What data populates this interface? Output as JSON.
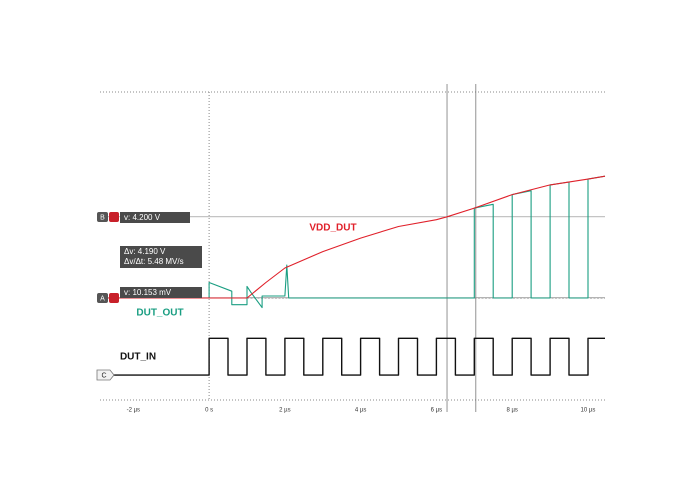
{
  "chart_data": {
    "type": "line",
    "xlim": [
      -2.88,
      10.45
    ],
    "ylim": [
      -5.28,
      10.66
    ],
    "y2lim": [
      -1.29,
      14.64
    ],
    "xticks": [
      {
        "value": -2,
        "label": "-2 µs"
      },
      {
        "value": 0,
        "label": "0 s"
      },
      {
        "value": 2,
        "label": "2 µs"
      },
      {
        "value": 4,
        "label": "4 µs"
      },
      {
        "value": 6,
        "label": "6 µs"
      },
      {
        "value": 8,
        "label": "8 µs"
      },
      {
        "value": 10,
        "label": "10 µs"
      }
    ],
    "origin_lines": true,
    "cursors": {
      "x": [
        6.28,
        7.04
      ],
      "y": [
        4.2,
        0.010153
      ]
    },
    "annotations": [
      "v: 4.200 V",
      "Δv: 4.190 V",
      "Δv/Δt: 5.48 MV/s",
      "v: 10.153 mV"
    ],
    "channel_tags": [
      "B",
      "A",
      "C"
    ],
    "series": [
      {
        "name": "VDD_DUT",
        "color": "#e0202a",
        "x": [
          -2.88,
          1.0,
          1.5,
          2,
          3,
          4,
          5,
          6,
          6.28,
          7,
          8,
          9,
          10,
          10.45
        ],
        "values": [
          0,
          0,
          0.8,
          1.55,
          2.4,
          3.1,
          3.7,
          4.05,
          4.2,
          4.65,
          5.35,
          5.85,
          6.15,
          6.3
        ]
      },
      {
        "name": "DUT_OUT",
        "color": "#1a9e82",
        "x": [
          -2.88,
          0,
          0,
          0.6,
          0.6,
          1.0,
          1.0,
          1.1,
          1.4,
          1.4,
          1.6,
          2.0,
          2.05,
          2.1,
          2.3,
          7.0,
          7.0,
          7.5,
          7.5,
          8.0,
          8.0,
          8.5,
          8.5,
          9.0,
          9.0,
          9.5,
          9.5,
          10.0,
          10.0,
          10.45
        ],
        "values": [
          0,
          0,
          0.8,
          0.35,
          -0.35,
          -0.35,
          0.6,
          0.3,
          -0.5,
          0.1,
          0.1,
          0.1,
          1.7,
          0,
          0,
          0,
          4.65,
          4.85,
          0,
          0,
          5.35,
          5.55,
          0,
          0,
          5.85,
          6.0,
          0,
          0,
          6.15,
          6.3
        ]
      },
      {
        "name": "DUT_IN",
        "color": "#111111",
        "axis": "y2",
        "x": [
          -2.88,
          0,
          0,
          0.5,
          0.5,
          1,
          1,
          1.5,
          1.5,
          2,
          2,
          2.5,
          2.5,
          3,
          3,
          3.5,
          3.5,
          4,
          4,
          4.5,
          4.5,
          5,
          5,
          5.5,
          5.5,
          6,
          6,
          6.5,
          6.5,
          7,
          7,
          7.5,
          7.5,
          8,
          8,
          8.5,
          8.5,
          9,
          9,
          9.5,
          9.5,
          10,
          10,
          10.45
        ],
        "values": [
          0,
          0,
          1.9,
          1.9,
          0,
          0,
          1.9,
          1.9,
          0,
          0,
          1.9,
          1.9,
          0,
          0,
          1.9,
          1.9,
          0,
          0,
          1.9,
          1.9,
          0,
          0,
          1.9,
          1.9,
          0,
          0,
          1.9,
          1.9,
          0,
          0,
          1.9,
          1.9,
          0,
          0,
          1.9,
          1.9,
          0,
          0,
          1.9,
          1.9,
          0,
          0,
          1.9,
          1.9
        ]
      }
    ]
  }
}
